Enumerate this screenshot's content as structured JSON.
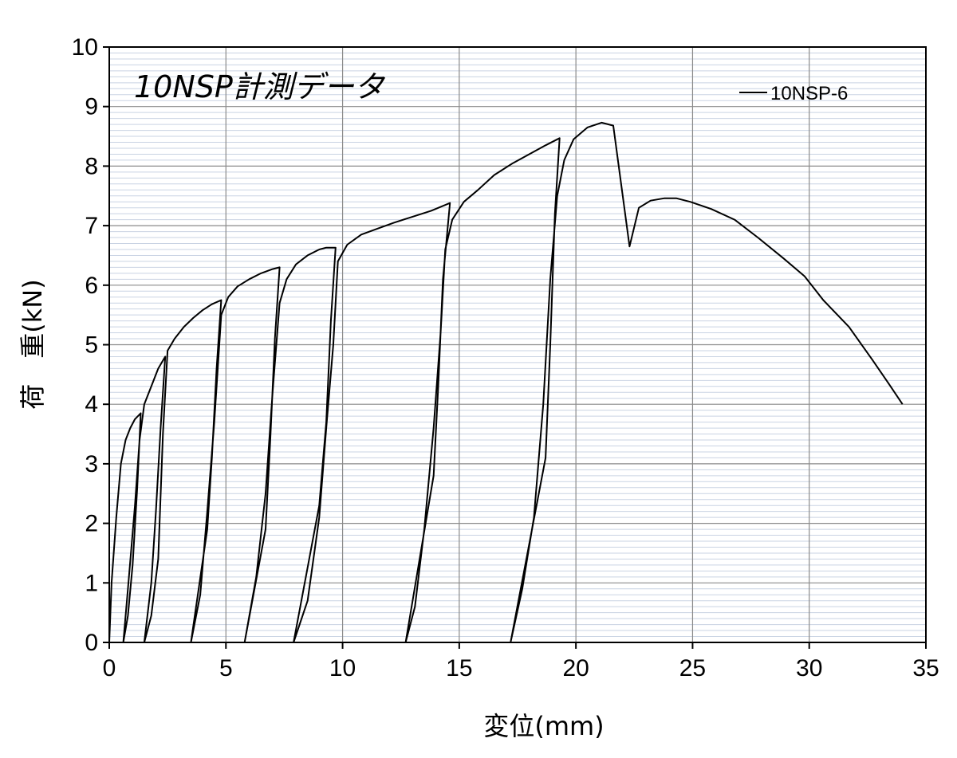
{
  "chart_data": {
    "type": "line",
    "title": "10NSP計測データ",
    "xlabel": "変位(mm)",
    "ylabel": "荷　重(kN)",
    "xlim": [
      0,
      35
    ],
    "ylim": [
      0,
      10
    ],
    "x_ticks": [
      "0",
      "5",
      "10",
      "15",
      "20",
      "25",
      "30",
      "35"
    ],
    "y_ticks": [
      "0",
      "1",
      "2",
      "3",
      "4",
      "5",
      "6",
      "7",
      "8",
      "9",
      "10"
    ],
    "grid": true,
    "legend_position": "top-right",
    "line_color": "#000000",
    "series": [
      {
        "name": "10NSP-6",
        "x": [
          0,
          0.1,
          0.3,
          0.5,
          0.7,
          0.9,
          1.1,
          1.35,
          1.35,
          1.2,
          1.0,
          0.8,
          0.6,
          0.6,
          0.8,
          1.1,
          1.3,
          1.5,
          1.8,
          2.1,
          2.4,
          2.4,
          2.2,
          2.0,
          1.8,
          1.5,
          1.5,
          1.8,
          2.1,
          2.3,
          2.5,
          2.8,
          3.2,
          3.6,
          4.0,
          4.4,
          4.8,
          4.8,
          4.6,
          4.4,
          4.2,
          3.5,
          3.5,
          3.9,
          4.2,
          4.5,
          4.8,
          5.1,
          5.5,
          6.0,
          6.5,
          7.0,
          7.3,
          7.3,
          7.1,
          6.9,
          6.7,
          5.8,
          5.8,
          6.3,
          6.7,
          7.0,
          7.3,
          7.6,
          8.0,
          8.5,
          9.0,
          9.3,
          9.7,
          9.7,
          9.5,
          9.3,
          9.0,
          7.9,
          7.9,
          8.5,
          9.0,
          9.3,
          9.6,
          9.8,
          10.2,
          10.8,
          11.5,
          12.2,
          13.0,
          13.8,
          14.6,
          14.6,
          14.3,
          14.1,
          13.9,
          12.7,
          12.7,
          13.1,
          13.5,
          13.9,
          14.2,
          14.4,
          14.7,
          15.2,
          15.8,
          16.5,
          17.3,
          18.0,
          18.7,
          19.3,
          19.3,
          19.1,
          18.9,
          18.7,
          17.2,
          17.2,
          17.7,
          18.2,
          18.6,
          18.9,
          19.2,
          19.5,
          19.9,
          20.5,
          21.1,
          21.6,
          22.3,
          22.7,
          23.2,
          23.8,
          24.3,
          24.9,
          25.8,
          26.8,
          27.8,
          28.9,
          29.8,
          30.6,
          31.7,
          32.7,
          33.4,
          34.0
        ],
        "y": [
          0,
          1.0,
          2.1,
          3.0,
          3.4,
          3.6,
          3.75,
          3.85,
          3.85,
          2.6,
          1.3,
          0.45,
          0,
          0,
          0.9,
          2.3,
          3.4,
          4.0,
          4.3,
          4.6,
          4.8,
          4.8,
          3.6,
          2.2,
          1.0,
          0,
          0,
          0.45,
          1.4,
          3.5,
          4.9,
          5.1,
          5.3,
          5.45,
          5.58,
          5.68,
          5.75,
          5.75,
          4.6,
          3.1,
          1.9,
          0,
          0,
          0.8,
          2.2,
          3.7,
          5.5,
          5.8,
          5.98,
          6.1,
          6.2,
          6.27,
          6.3,
          6.3,
          5.1,
          3.4,
          1.9,
          0,
          0,
          1.1,
          2.5,
          4.2,
          5.7,
          6.1,
          6.35,
          6.5,
          6.6,
          6.63,
          6.63,
          6.63,
          5.4,
          3.7,
          2.3,
          0,
          0,
          0.7,
          2.1,
          3.6,
          5.0,
          6.4,
          6.68,
          6.85,
          6.95,
          7.05,
          7.15,
          7.25,
          7.38,
          7.38,
          6.1,
          4.3,
          2.8,
          0,
          0,
          0.6,
          1.9,
          3.6,
          5.2,
          6.6,
          7.1,
          7.4,
          7.6,
          7.85,
          8.05,
          8.2,
          8.35,
          8.47,
          8.47,
          7.2,
          5.0,
          3.1,
          0,
          0,
          0.9,
          2.1,
          4.0,
          6.1,
          7.5,
          8.1,
          8.45,
          8.65,
          8.73,
          8.68,
          6.65,
          7.3,
          7.42,
          7.46,
          7.46,
          7.4,
          7.28,
          7.1,
          6.8,
          6.45,
          6.15,
          5.75,
          5.3,
          4.75,
          4.35,
          4.0
        ]
      }
    ]
  }
}
